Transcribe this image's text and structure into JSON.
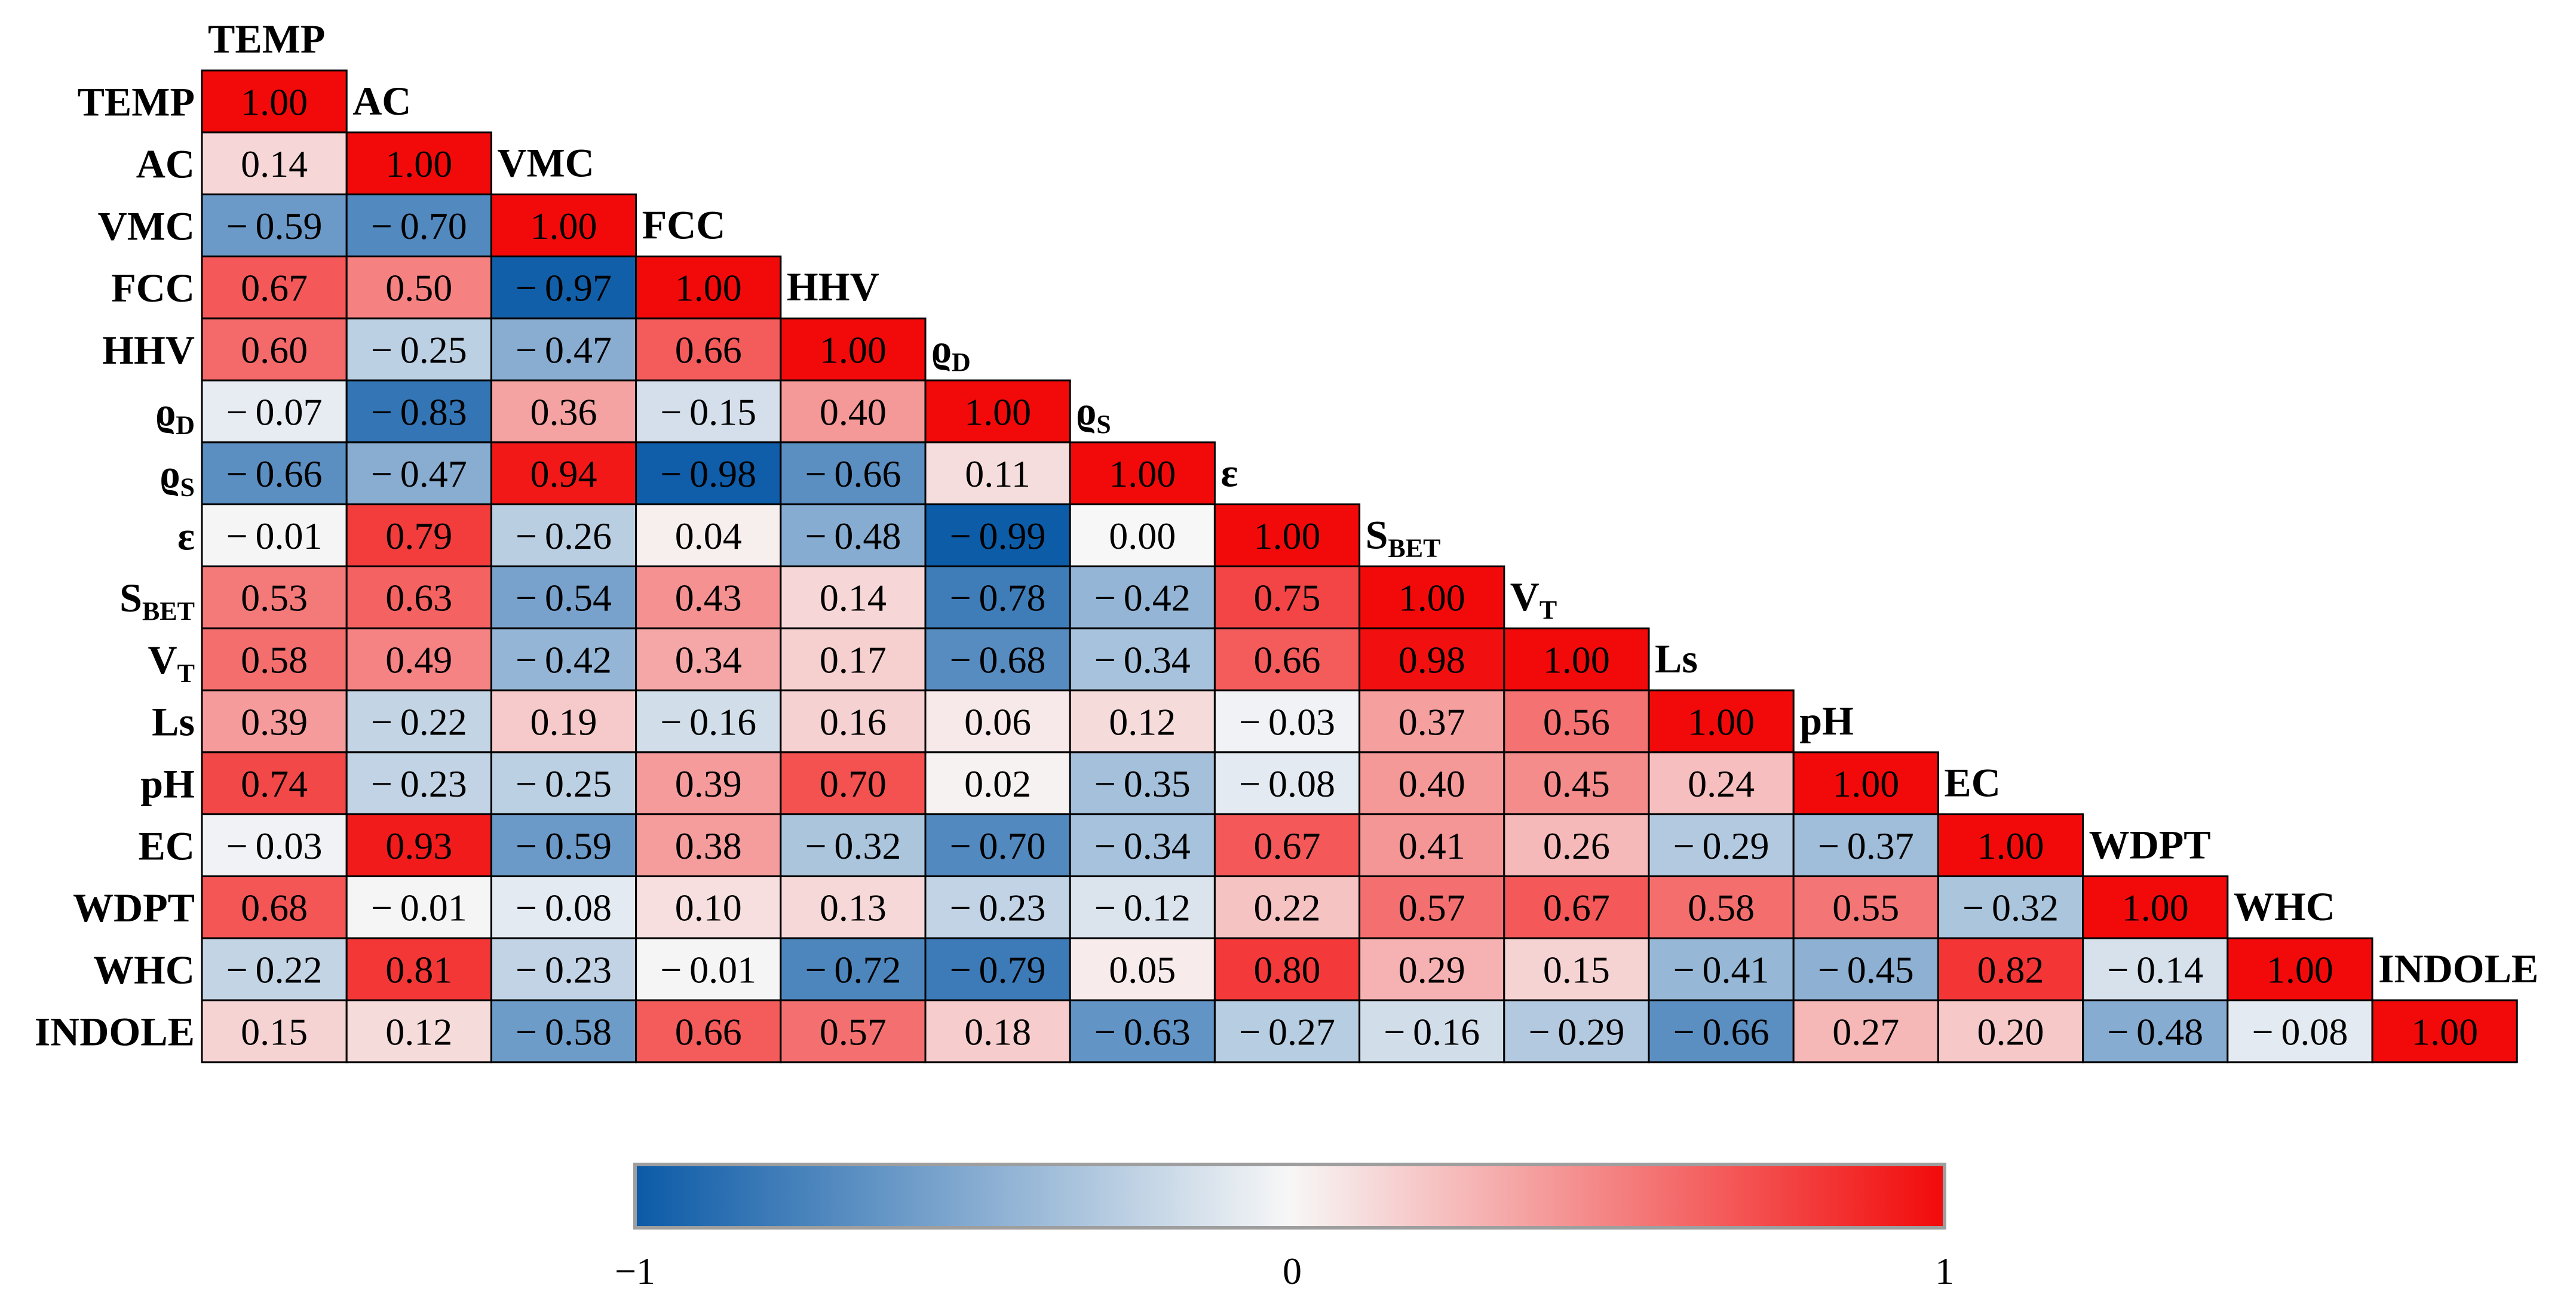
{
  "chart_data": {
    "type": "heatmap",
    "variables": [
      {
        "name": "TEMP",
        "sub": ""
      },
      {
        "name": "AC",
        "sub": ""
      },
      {
        "name": "VMC",
        "sub": ""
      },
      {
        "name": "FCC",
        "sub": ""
      },
      {
        "name": "HHV",
        "sub": ""
      },
      {
        "name": "ϱ",
        "sub": "D"
      },
      {
        "name": "ϱ",
        "sub": "S"
      },
      {
        "name": "ε",
        "sub": ""
      },
      {
        "name": "S",
        "sub": "BET"
      },
      {
        "name": "V",
        "sub": "T"
      },
      {
        "name": "Ls",
        "sub": ""
      },
      {
        "name": "pH",
        "sub": ""
      },
      {
        "name": "EC",
        "sub": ""
      },
      {
        "name": "WDPT",
        "sub": ""
      },
      {
        "name": "WHC",
        "sub": ""
      },
      {
        "name": "INDOLE",
        "sub": ""
      }
    ],
    "matrix": [
      [
        1.0
      ],
      [
        0.14,
        1.0
      ],
      [
        -0.59,
        -0.7,
        1.0
      ],
      [
        0.67,
        0.5,
        -0.97,
        1.0
      ],
      [
        0.6,
        -0.25,
        -0.47,
        0.66,
        1.0
      ],
      [
        -0.07,
        -0.83,
        0.36,
        -0.15,
        0.4,
        1.0
      ],
      [
        -0.66,
        -0.47,
        0.94,
        -0.98,
        -0.66,
        0.11,
        1.0
      ],
      [
        -0.01,
        0.79,
        -0.26,
        0.04,
        -0.48,
        -0.99,
        0.0,
        1.0
      ],
      [
        0.53,
        0.63,
        -0.54,
        0.43,
        0.14,
        -0.78,
        -0.42,
        0.75,
        1.0
      ],
      [
        0.58,
        0.49,
        -0.42,
        0.34,
        0.17,
        -0.68,
        -0.34,
        0.66,
        0.98,
        1.0
      ],
      [
        0.39,
        -0.22,
        0.19,
        -0.16,
        0.16,
        0.06,
        0.12,
        -0.03,
        0.37,
        0.56,
        1.0
      ],
      [
        0.74,
        -0.23,
        -0.25,
        0.39,
        0.7,
        0.02,
        -0.35,
        -0.08,
        0.4,
        0.45,
        0.24,
        1.0
      ],
      [
        -0.03,
        0.93,
        -0.59,
        0.38,
        -0.32,
        -0.7,
        -0.34,
        0.67,
        0.41,
        0.26,
        -0.29,
        -0.37,
        1.0
      ],
      [
        0.68,
        -0.01,
        -0.08,
        0.1,
        0.13,
        -0.23,
        -0.12,
        0.22,
        0.57,
        0.67,
        0.58,
        0.55,
        -0.32,
        1.0
      ],
      [
        -0.22,
        0.81,
        -0.23,
        -0.01,
        -0.72,
        -0.79,
        0.05,
        0.8,
        0.29,
        0.15,
        -0.41,
        -0.45,
        0.82,
        -0.14,
        1.0
      ],
      [
        0.15,
        0.12,
        -0.58,
        0.66,
        0.57,
        0.18,
        -0.63,
        -0.27,
        -0.16,
        -0.29,
        -0.66,
        0.27,
        0.2,
        -0.48,
        -0.08,
        1.0
      ]
    ],
    "colorbar": {
      "min": -1,
      "max": 1,
      "ticks": [
        "−1",
        "0",
        "1"
      ],
      "colors": {
        "negative": "#0b5aa7",
        "neutral": "#f7f7f7",
        "positive": "#f20a0a"
      }
    }
  }
}
